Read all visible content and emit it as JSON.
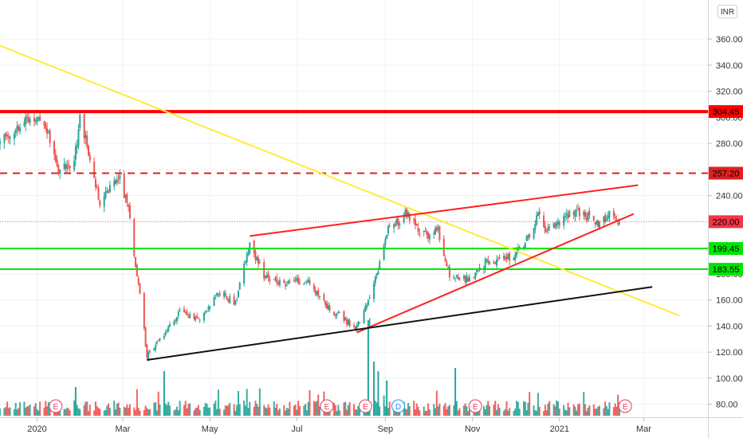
{
  "chart_data": {
    "type": "candlestick",
    "currency": "INR",
    "y_axis": {
      "ticks": [
        "360.00",
        "340.00",
        "320.00",
        "300.00",
        "280.00",
        "260.00",
        "240.00",
        "220.00",
        "200.00",
        "180.00",
        "160.00",
        "140.00",
        "120.00",
        "100.00",
        "80.00"
      ],
      "tick_values": [
        360,
        340,
        320,
        300,
        280,
        260,
        240,
        220,
        200,
        180,
        160,
        140,
        120,
        100,
        80
      ],
      "range": [
        70,
        390
      ]
    },
    "x_axis": {
      "labels": [
        "2020",
        "Mar",
        "May",
        "Jul",
        "Sep",
        "Nov",
        "2021",
        "Mar"
      ],
      "label_dates": [
        "2020-01-01",
        "2020-03-01",
        "2020-05-01",
        "2020-07-01",
        "2020-09-01",
        "2020-11-01",
        "2021-01-01",
        "2021-03-01"
      ],
      "range": [
        "2019-12-06",
        "2021-04-15"
      ]
    },
    "price_levels": [
      {
        "label": "304.45",
        "value": 304.45,
        "color": "#ff0000",
        "style": "solid-thick"
      },
      {
        "label": "257.20",
        "value": 257.2,
        "color": "#e02020",
        "style": "dashed"
      },
      {
        "label": "220.00",
        "value": 220.0,
        "color": "#f23645",
        "style": "dotted"
      },
      {
        "label": "199.45",
        "value": 199.45,
        "color": "#00e600",
        "style": "solid"
      },
      {
        "label": "183.55",
        "value": 183.55,
        "color": "#00e600",
        "style": "solid"
      }
    ],
    "trendlines": [
      {
        "name": "descending",
        "color": "#ffeb3b",
        "from": [
          "2019-12-06",
          355
        ],
        "to": [
          "2021-03-26",
          148
        ]
      },
      {
        "name": "upper-wedge",
        "color": "#ff2020",
        "from": [
          "2020-05-29",
          209
        ],
        "to": [
          "2021-02-25",
          248
        ]
      },
      {
        "name": "lower-wedge",
        "color": "#ff2020",
        "from": [
          "2020-08-12",
          135
        ],
        "to": [
          "2021-02-22",
          226
        ]
      },
      {
        "name": "support",
        "color": "#111111",
        "from": [
          "2020-03-18",
          114
        ],
        "to": [
          "2021-03-07",
          170
        ]
      }
    ],
    "price_anchors": [
      [
        "2019-12-06",
        280
      ],
      [
        "2019-12-18",
        292
      ],
      [
        "2019-12-27",
        300
      ],
      [
        "2020-01-07",
        296
      ],
      [
        "2020-01-16",
        260
      ],
      [
        "2020-01-27",
        264
      ],
      [
        "2020-01-31",
        300
      ],
      [
        "2020-02-07",
        270
      ],
      [
        "2020-02-14",
        234
      ],
      [
        "2020-02-21",
        246
      ],
      [
        "2020-02-28",
        254
      ],
      [
        "2020-03-05",
        228
      ],
      [
        "2020-03-12",
        172
      ],
      [
        "2020-03-18",
        118
      ],
      [
        "2020-03-26",
        128
      ],
      [
        "2020-04-09",
        150
      ],
      [
        "2020-04-24",
        146
      ],
      [
        "2020-05-08",
        166
      ],
      [
        "2020-05-19",
        158
      ],
      [
        "2020-05-29",
        204
      ],
      [
        "2020-06-08",
        178
      ],
      [
        "2020-06-24",
        172
      ],
      [
        "2020-07-08",
        176
      ],
      [
        "2020-07-22",
        156
      ],
      [
        "2020-08-12",
        138
      ],
      [
        "2020-08-24",
        172
      ],
      [
        "2020-09-03",
        216
      ],
      [
        "2020-09-16",
        226
      ],
      [
        "2020-09-28",
        210
      ],
      [
        "2020-10-08",
        212
      ],
      [
        "2020-10-16",
        180
      ],
      [
        "2020-10-29",
        176
      ],
      [
        "2020-11-10",
        188
      ],
      [
        "2020-11-23",
        190
      ],
      [
        "2020-12-07",
        200
      ],
      [
        "2020-12-17",
        226
      ],
      [
        "2020-12-23",
        212
      ],
      [
        "2021-01-07",
        224
      ],
      [
        "2021-01-14",
        228
      ],
      [
        "2021-01-21",
        224
      ],
      [
        "2021-01-28",
        218
      ],
      [
        "2021-02-05",
        226
      ],
      [
        "2021-02-12",
        218
      ]
    ],
    "volume_scale_note": "relative volume bars along the bottom pane",
    "events": [
      {
        "label": "E",
        "date": "2020-01-14",
        "color": "#e04060"
      },
      {
        "label": "E",
        "date": "2020-07-22",
        "color": "#e04060"
      },
      {
        "label": "E",
        "date": "2020-08-18",
        "color": "#e04060"
      },
      {
        "label": "D",
        "date": "2020-09-10",
        "color": "#2196f3"
      },
      {
        "label": "E",
        "date": "2020-11-03",
        "color": "#e04060"
      },
      {
        "label": "E",
        "date": "2021-02-16",
        "color": "#e04060"
      }
    ],
    "colors": {
      "up": "#26a69a",
      "down": "#ef5350",
      "volume_up": "#26a69a",
      "volume_down": "#ef5350"
    }
  }
}
